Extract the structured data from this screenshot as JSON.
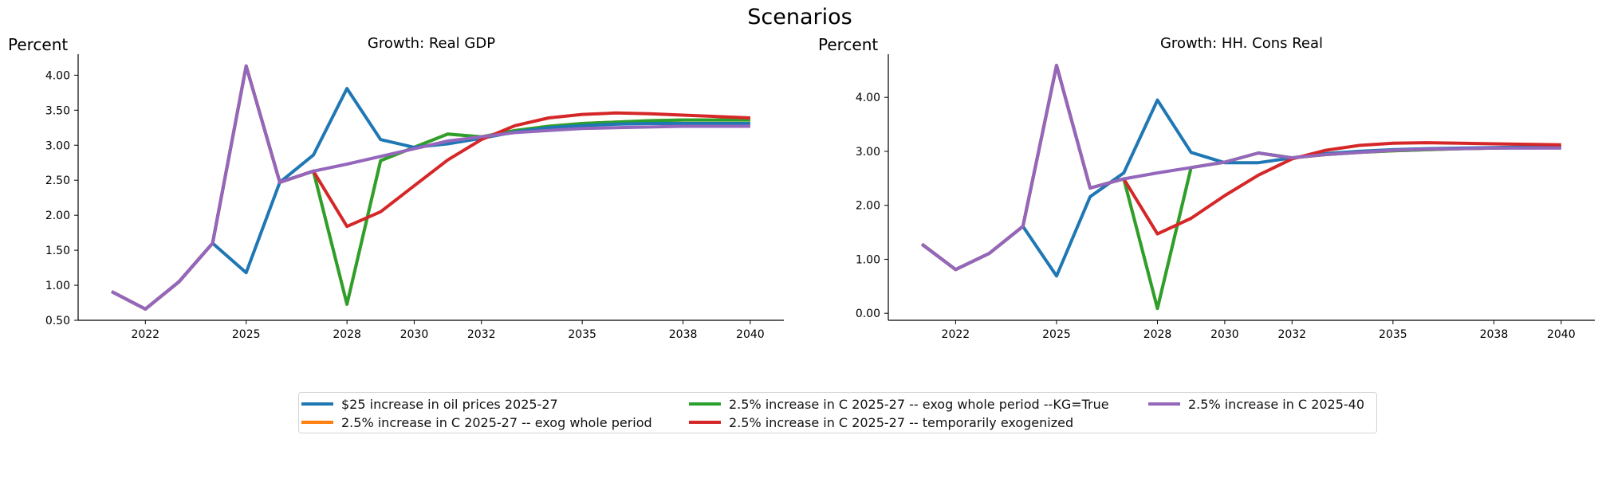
{
  "figure": {
    "title": "Scenarios"
  },
  "legend": {
    "items": [
      {
        "label": "$25 increase in oil prices 2025-27",
        "color": "#1f77b4"
      },
      {
        "label": "2.5% increase in C 2025-27 -- exog whole period",
        "color": "#ff7f0e"
      },
      {
        "label": "2.5% increase in C 2025-27 -- exog whole period --KG=True",
        "color": "#2ca02c"
      },
      {
        "label": "2.5% increase in C 2025-27 -- temporarily exogenized",
        "color": "#d62728"
      },
      {
        "label": "2.5% increase in C 2025-40",
        "color": "#9467bd"
      }
    ]
  },
  "chart_data": [
    {
      "type": "line",
      "title": "Growth: Real GDP",
      "ylabel": "Percent",
      "xlabel": "",
      "x": [
        2021,
        2022,
        2023,
        2024,
        2025,
        2026,
        2027,
        2028,
        2029,
        2030,
        2031,
        2032,
        2033,
        2034,
        2035,
        2036,
        2037,
        2038,
        2039,
        2040
      ],
      "xticks": [
        2022,
        2025,
        2028,
        2030,
        2032,
        2035,
        2038,
        2040
      ],
      "xlim": [
        2020,
        2041
      ],
      "ylim": [
        0.5,
        4.3
      ],
      "yticks": [
        "0.50",
        "1.00",
        "1.50",
        "2.00",
        "2.50",
        "3.00",
        "3.50",
        "4.00"
      ],
      "series": [
        {
          "name": "$25 increase in oil prices 2025-27",
          "color": "#1f77b4",
          "values": [
            0.91,
            0.66,
            1.05,
            1.6,
            1.18,
            2.47,
            2.86,
            3.81,
            3.08,
            2.97,
            3.02,
            3.1,
            3.19,
            3.25,
            3.28,
            3.3,
            3.31,
            3.31,
            3.31,
            3.31
          ]
        },
        {
          "name": "2.5% increase in C 2025-27 -- exog whole period",
          "color": "#ff7f0e",
          "values": [
            0.91,
            0.66,
            1.05,
            1.6,
            4.13,
            2.47,
            2.63,
            0.73,
            2.78,
            2.97,
            3.16,
            3.12,
            3.21,
            3.27,
            3.31,
            3.33,
            3.35,
            3.36,
            3.36,
            3.36
          ]
        },
        {
          "name": "2.5% increase in C 2025-27 -- exog whole period --KG=True",
          "color": "#2ca02c",
          "values": [
            0.91,
            0.66,
            1.05,
            1.6,
            4.13,
            2.47,
            2.63,
            0.73,
            2.78,
            2.97,
            3.16,
            3.12,
            3.21,
            3.27,
            3.31,
            3.33,
            3.35,
            3.36,
            3.36,
            3.36
          ]
        },
        {
          "name": "2.5% increase in C 2025-27 -- temporarily exogenized",
          "color": "#d62728",
          "values": [
            0.91,
            0.66,
            1.05,
            1.6,
            4.13,
            2.47,
            2.63,
            1.84,
            2.05,
            2.42,
            2.79,
            3.08,
            3.28,
            3.39,
            3.44,
            3.46,
            3.45,
            3.43,
            3.41,
            3.39
          ]
        },
        {
          "name": "2.5% increase in C 2025-40",
          "color": "#9467bd",
          "values": [
            0.91,
            0.66,
            1.05,
            1.6,
            4.13,
            2.47,
            2.63,
            2.73,
            2.84,
            2.95,
            3.06,
            3.12,
            3.18,
            3.21,
            3.24,
            3.25,
            3.26,
            3.27,
            3.27,
            3.27
          ]
        }
      ]
    },
    {
      "type": "line",
      "title": "Growth: HH. Cons Real",
      "ylabel": "Percent",
      "xlabel": "",
      "x": [
        2021,
        2022,
        2023,
        2024,
        2025,
        2026,
        2027,
        2028,
        2029,
        2030,
        2031,
        2032,
        2033,
        2034,
        2035,
        2036,
        2037,
        2038,
        2039,
        2040
      ],
      "xticks": [
        2022,
        2025,
        2028,
        2030,
        2032,
        2035,
        2038,
        2040
      ],
      "xlim": [
        2020,
        2041
      ],
      "ylim": [
        -0.13,
        4.8
      ],
      "yticks": [
        "0.00",
        "1.00",
        "2.00",
        "3.00",
        "4.00"
      ],
      "series": [
        {
          "name": "$25 increase in oil prices 2025-27",
          "color": "#1f77b4",
          "values": [
            1.28,
            0.81,
            1.11,
            1.61,
            0.69,
            2.16,
            2.6,
            3.95,
            2.98,
            2.79,
            2.79,
            2.88,
            2.96,
            3.0,
            3.03,
            3.05,
            3.06,
            3.07,
            3.08,
            3.08
          ]
        },
        {
          "name": "2.5% increase in C 2025-27 -- exog whole period",
          "color": "#ff7f0e",
          "values": [
            1.28,
            0.81,
            1.11,
            1.61,
            4.59,
            2.32,
            2.49,
            0.09,
            2.7,
            2.8,
            2.97,
            2.88,
            2.94,
            2.98,
            3.01,
            3.03,
            3.05,
            3.06,
            3.07,
            3.08
          ]
        },
        {
          "name": "2.5% increase in C 2025-27 -- exog whole period --KG=True",
          "color": "#2ca02c",
          "values": [
            1.28,
            0.81,
            1.11,
            1.61,
            4.59,
            2.32,
            2.49,
            0.09,
            2.7,
            2.8,
            2.97,
            2.88,
            2.94,
            2.98,
            3.01,
            3.03,
            3.05,
            3.06,
            3.07,
            3.08
          ]
        },
        {
          "name": "2.5% increase in C 2025-27 -- temporarily exogenized",
          "color": "#d62728",
          "values": [
            1.28,
            0.81,
            1.11,
            1.61,
            4.59,
            2.32,
            2.49,
            1.47,
            1.76,
            2.18,
            2.56,
            2.86,
            3.02,
            3.11,
            3.15,
            3.16,
            3.15,
            3.14,
            3.13,
            3.12
          ]
        },
        {
          "name": "2.5% increase in C 2025-40",
          "color": "#9467bd",
          "values": [
            1.28,
            0.81,
            1.11,
            1.61,
            4.59,
            2.32,
            2.49,
            2.6,
            2.7,
            2.8,
            2.97,
            2.88,
            2.94,
            2.98,
            3.02,
            3.04,
            3.05,
            3.06,
            3.06,
            3.06
          ]
        }
      ]
    }
  ]
}
